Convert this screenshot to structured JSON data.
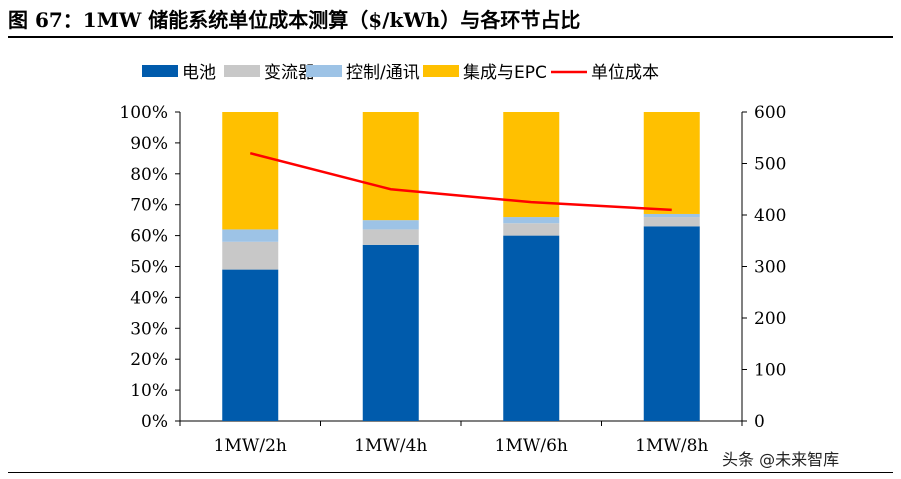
{
  "figure_title": "图 67：1MW 储能系统单位成本测算（$/kWh）与各环节占比",
  "watermark": "头条 @未来智库",
  "colors": {
    "battery": "#005BAC",
    "pcs": "#C8C8C8",
    "control": "#9DC3E6",
    "integration": "#FFC000",
    "unit_cost": "#FF0000"
  },
  "chart_data": {
    "type": "bar",
    "stacked": true,
    "categories": [
      "1MW/2h",
      "1MW/4h",
      "1MW/6h",
      "1MW/8h"
    ],
    "series": [
      {
        "name": "电池",
        "values": [
          49,
          57,
          60,
          63
        ],
        "color": "#005BAC",
        "axis": "left"
      },
      {
        "name": "变流器",
        "values": [
          9,
          5,
          4,
          3
        ],
        "color": "#C8C8C8",
        "axis": "left"
      },
      {
        "name": "控制/通讯",
        "values": [
          4,
          3,
          2,
          1
        ],
        "color": "#9DC3E6",
        "axis": "left"
      },
      {
        "name": "集成与EPC",
        "values": [
          38,
          35,
          34,
          33
        ],
        "color": "#FFC000",
        "axis": "left"
      }
    ],
    "line_series": {
      "name": "单位成本",
      "values": [
        520,
        450,
        425,
        410
      ],
      "color": "#FF0000",
      "axis": "right"
    },
    "left_axis": {
      "ticks": [
        "0%",
        "10%",
        "20%",
        "30%",
        "40%",
        "50%",
        "60%",
        "70%",
        "80%",
        "90%",
        "100%"
      ],
      "ylim": [
        0,
        100
      ]
    },
    "right_axis": {
      "ticks": [
        "0",
        "100",
        "200",
        "300",
        "400",
        "500",
        "600"
      ],
      "ylim": [
        0,
        600
      ]
    },
    "legend_position": "top",
    "grid": false
  }
}
